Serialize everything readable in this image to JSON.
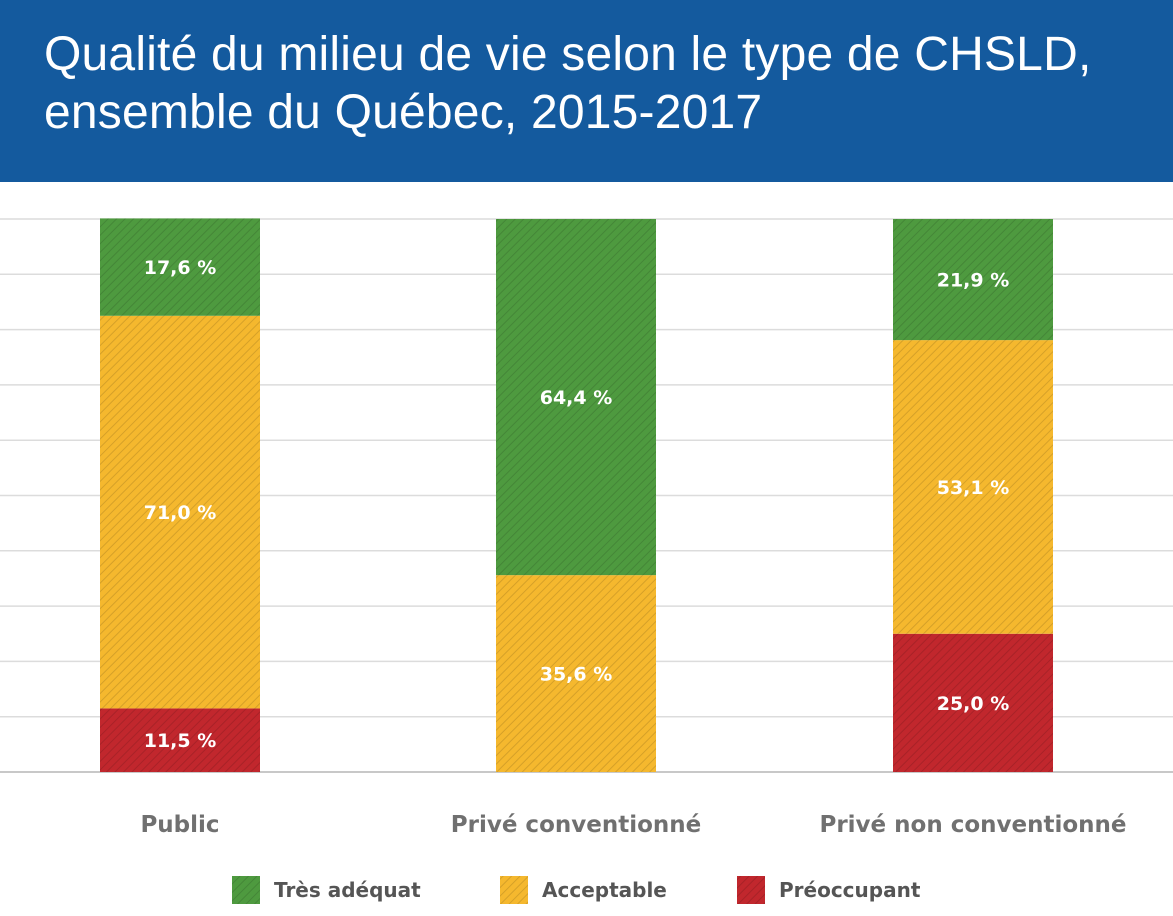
{
  "chart_data": {
    "type": "bar",
    "stacked": true,
    "title": "Qualité du milieu de vie selon le type de CHSLD, ensemble du Québec, 2015-2017",
    "xlabel": "",
    "ylabel": "",
    "ylim": [
      0,
      100
    ],
    "grid": true,
    "legend_position": "bottom",
    "categories": [
      "Public",
      "Privé conventionné",
      "Privé non conventionné"
    ],
    "series": [
      {
        "name": "Préoccupant",
        "color": "#c1272d",
        "values": [
          11.5,
          0,
          25.0
        ],
        "labels": [
          "11,5 %",
          "",
          "25,0 %"
        ]
      },
      {
        "name": "Acceptable",
        "color": "#f5b82e",
        "values": [
          71.0,
          35.6,
          53.1
        ],
        "labels": [
          "71,0 %",
          "35,6 %",
          "53,1 %"
        ]
      },
      {
        "name": "Très adéquat",
        "color": "#4e9a3f",
        "values": [
          17.6,
          64.4,
          21.9
        ],
        "labels": [
          "17,6 %",
          "64,4 %",
          "21,9 %"
        ]
      }
    ],
    "legend": [
      "Très adéquat",
      "Acceptable",
      "Préoccupant"
    ]
  }
}
